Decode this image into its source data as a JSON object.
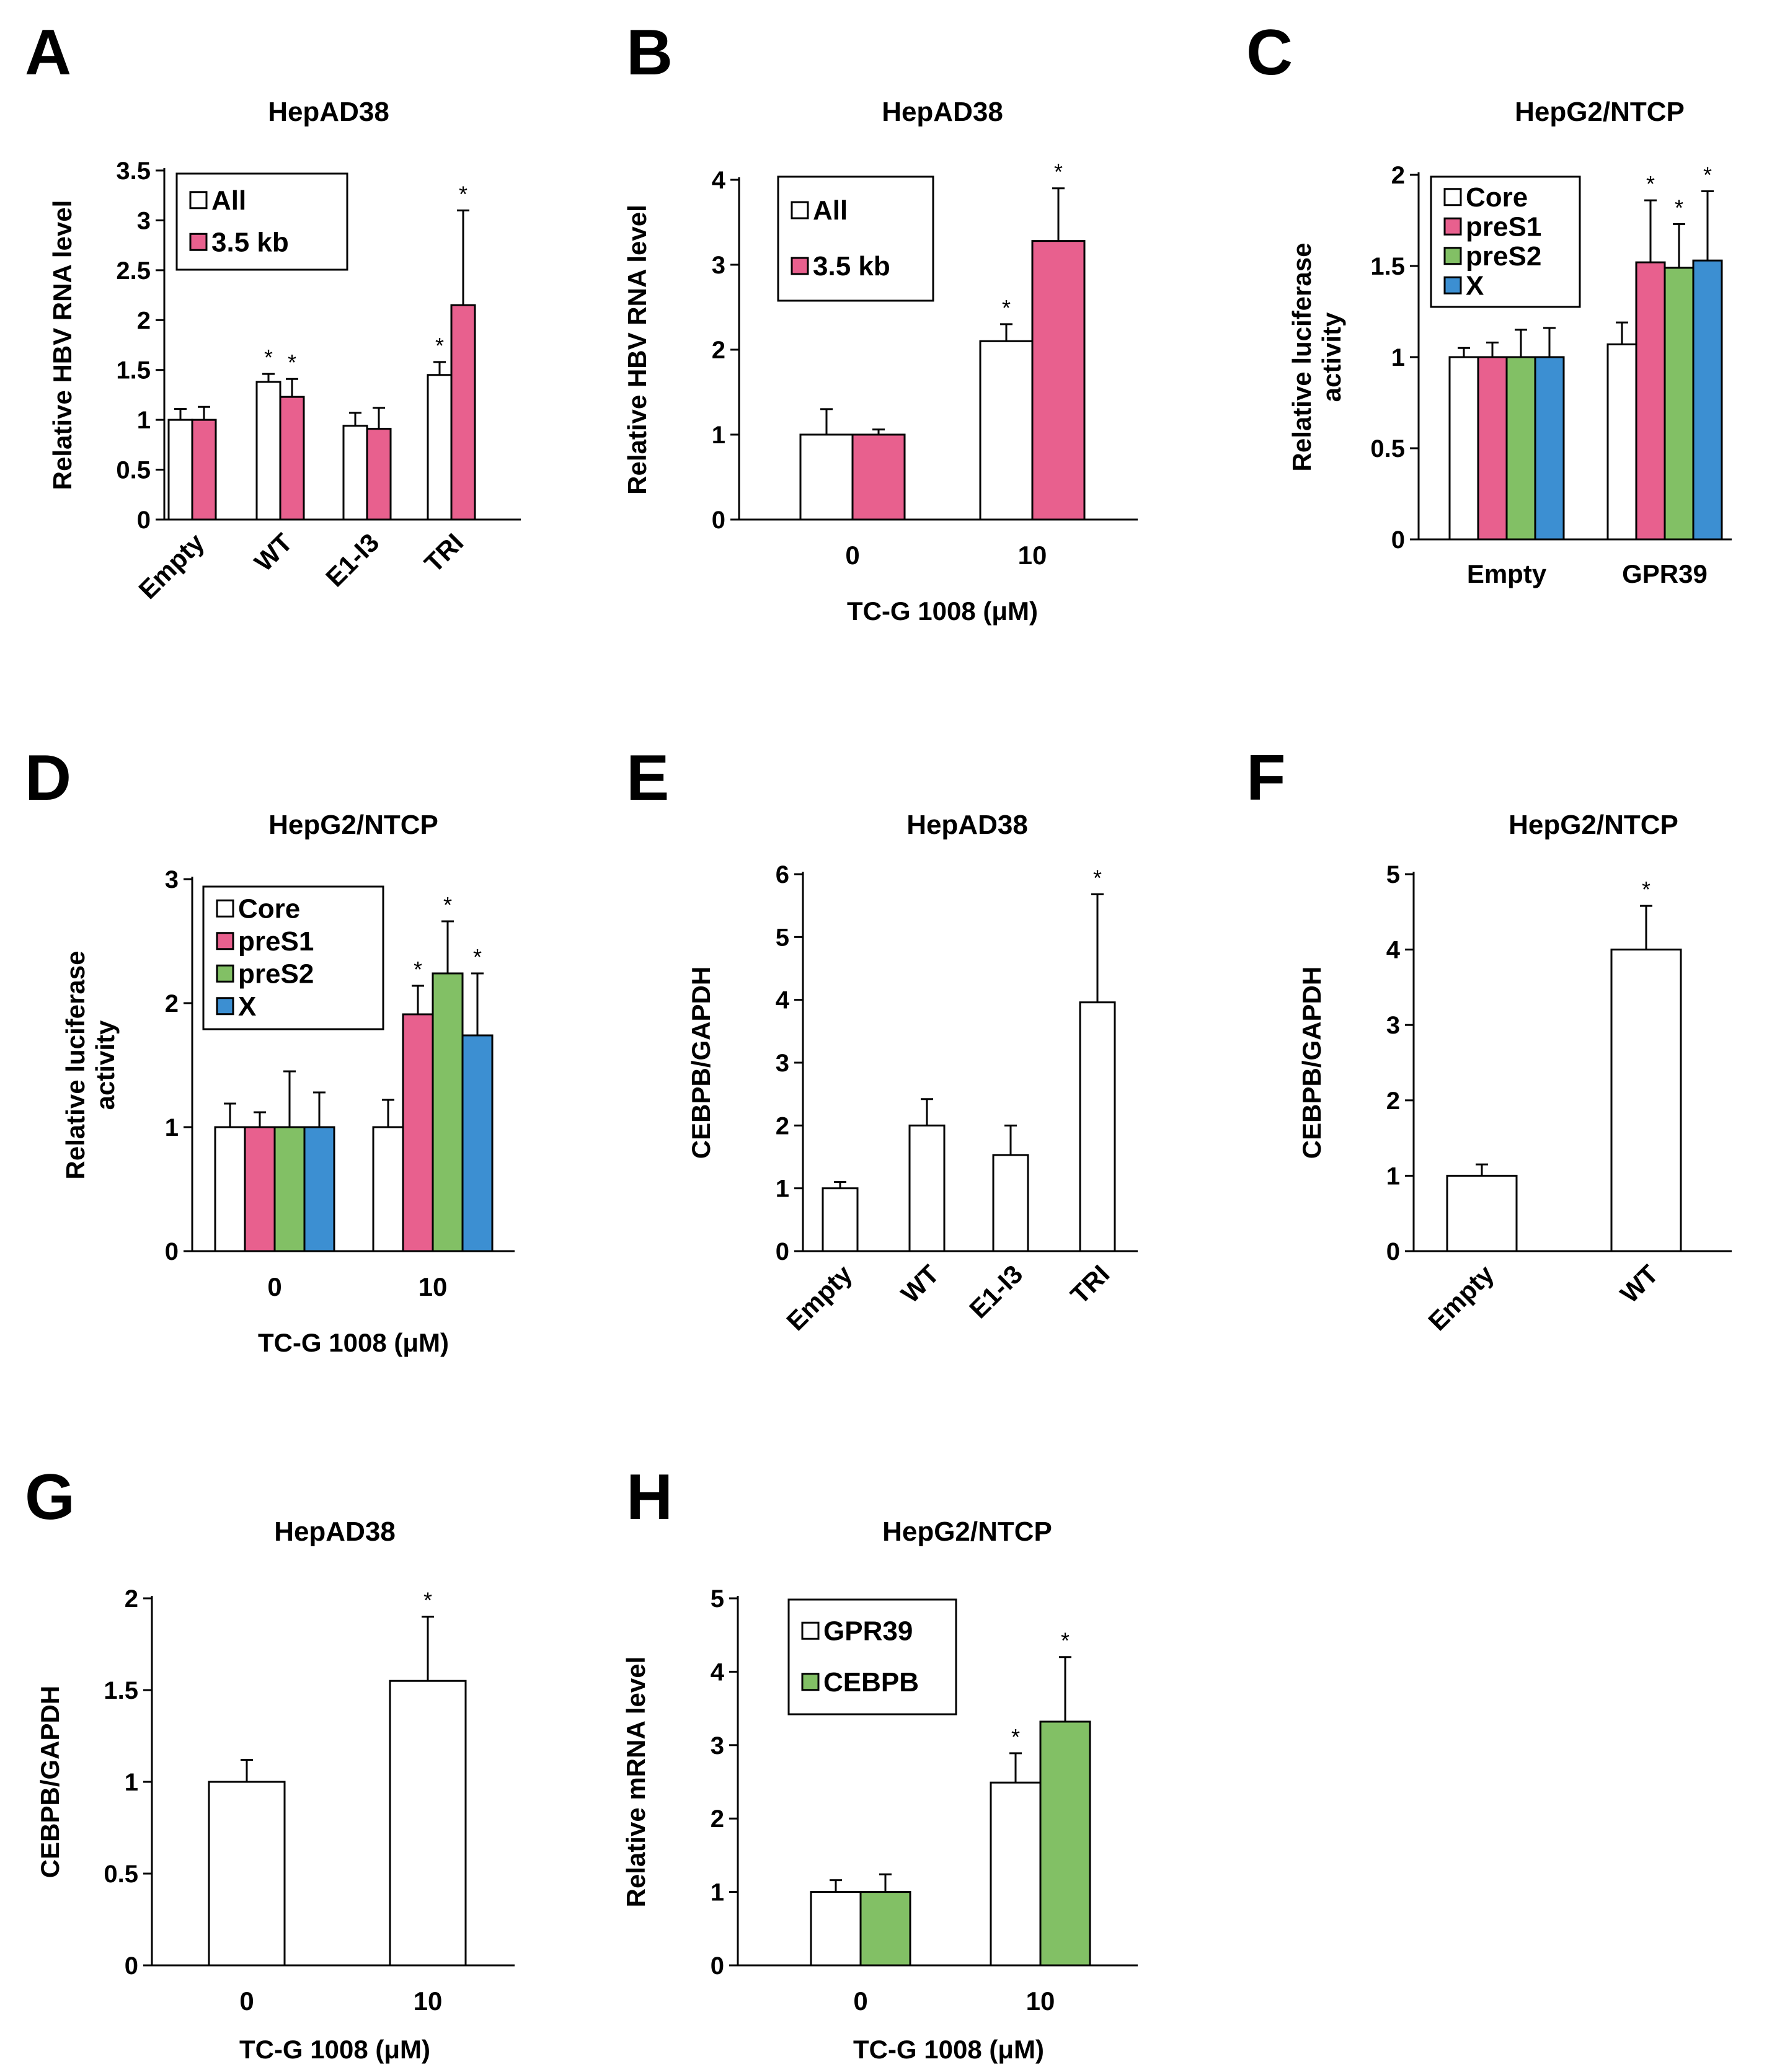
{
  "chart_data": [
    {
      "panel": "A",
      "type": "bar",
      "title": "HepAD38",
      "ylabel": "Relative HBV RNA level",
      "xlabel": "",
      "ylim": [
        0,
        3.5
      ],
      "yticks": [
        0,
        0.5,
        1,
        1.5,
        2,
        2.5,
        3,
        3.5
      ],
      "ytick_labels": [
        "0",
        "0.5",
        "1",
        "1.5",
        "2",
        "2.5",
        "3",
        "3.5"
      ],
      "categories": [
        "Empty",
        "WT",
        "E1-I3",
        "TRI"
      ],
      "rotate_categories": true,
      "series": [
        {
          "name": "All",
          "color": "#ffffff",
          "values": [
            1.0,
            1.38,
            0.94,
            1.45
          ],
          "errors": [
            0.11,
            0.08,
            0.13,
            0.13
          ],
          "sig": [
            false,
            true,
            false,
            true
          ]
        },
        {
          "name": "3.5 kb",
          "color": "#e8608e",
          "values": [
            1.0,
            1.23,
            0.91,
            2.15
          ],
          "errors": [
            0.13,
            0.18,
            0.21,
            0.95
          ],
          "sig": [
            false,
            true,
            false,
            true
          ]
        }
      ],
      "legend": "top-left"
    },
    {
      "panel": "B",
      "type": "bar",
      "title": "HepAD38",
      "ylabel": "Relative HBV RNA level",
      "xlabel": "TC-G 1008 (μM)",
      "ylim": [
        0,
        4
      ],
      "yticks": [
        0,
        1,
        2,
        3,
        4
      ],
      "ytick_labels": [
        "0",
        "1",
        "2",
        "3",
        "4"
      ],
      "categories": [
        "0",
        "10"
      ],
      "rotate_categories": false,
      "series": [
        {
          "name": "All",
          "color": "#ffffff",
          "values": [
            1.0,
            2.1
          ],
          "errors": [
            0.3,
            0.2
          ],
          "sig": [
            false,
            true
          ]
        },
        {
          "name": "3.5 kb",
          "color": "#e8608e",
          "values": [
            1.0,
            3.28
          ],
          "errors": [
            0.06,
            0.62
          ],
          "sig": [
            false,
            true
          ]
        }
      ],
      "legend": "top-left"
    },
    {
      "panel": "C",
      "type": "bar",
      "title": "HepG2/NTCP",
      "ylabel": [
        "Relative luciferase",
        "activity"
      ],
      "xlabel": "",
      "ylim": [
        0,
        2
      ],
      "yticks": [
        0,
        0.5,
        1,
        1.5,
        2
      ],
      "ytick_labels": [
        "0",
        "0.5",
        "1",
        "1.5",
        "2"
      ],
      "categories": [
        "Empty",
        "GPR39"
      ],
      "rotate_categories": false,
      "series": [
        {
          "name": "Core",
          "color": "#ffffff",
          "values": [
            1.0,
            1.07
          ],
          "errors": [
            0.05,
            0.12
          ],
          "sig": [
            false,
            false
          ]
        },
        {
          "name": "preS1",
          "color": "#e8608e",
          "values": [
            1.0,
            1.52
          ],
          "errors": [
            0.08,
            0.34
          ],
          "sig": [
            false,
            true
          ]
        },
        {
          "name": "preS2",
          "color": "#82c065",
          "values": [
            1.0,
            1.49
          ],
          "errors": [
            0.15,
            0.24
          ],
          "sig": [
            false,
            true
          ]
        },
        {
          "name": "X",
          "color": "#3c8fd2",
          "values": [
            1.0,
            1.53
          ],
          "errors": [
            0.16,
            0.38
          ],
          "sig": [
            false,
            true
          ]
        }
      ],
      "legend": "top-left"
    },
    {
      "panel": "D",
      "type": "bar",
      "title": "HepG2/NTCP",
      "ylabel": [
        "Relative luciferase",
        "activity"
      ],
      "xlabel": "TC-G 1008 (μM)",
      "ylim": [
        0,
        3
      ],
      "yticks": [
        0,
        1,
        2,
        3
      ],
      "ytick_labels": [
        "0",
        "1",
        "2",
        "3"
      ],
      "categories": [
        "0",
        "10"
      ],
      "rotate_categories": false,
      "series": [
        {
          "name": "Core",
          "color": "#ffffff",
          "values": [
            1.0,
            1.0
          ],
          "errors": [
            0.19,
            0.22
          ],
          "sig": [
            false,
            false
          ]
        },
        {
          "name": "preS1",
          "color": "#e8608e",
          "values": [
            1.0,
            1.91
          ],
          "errors": [
            0.12,
            0.23
          ],
          "sig": [
            false,
            true
          ]
        },
        {
          "name": "preS2",
          "color": "#82c065",
          "values": [
            1.0,
            2.24
          ],
          "errors": [
            0.45,
            0.42
          ],
          "sig": [
            false,
            true
          ]
        },
        {
          "name": "X",
          "color": "#3c8fd2",
          "values": [
            1.0,
            1.74
          ],
          "errors": [
            0.28,
            0.5
          ],
          "sig": [
            false,
            true
          ]
        }
      ],
      "legend": "top-left"
    },
    {
      "panel": "E",
      "type": "bar",
      "title": "HepAD38",
      "ylabel": "CEBPB/GAPDH",
      "xlabel": "",
      "ylim": [
        0,
        6
      ],
      "yticks": [
        0,
        1,
        2,
        3,
        4,
        5,
        6
      ],
      "ytick_labels": [
        "0",
        "1",
        "2",
        "3",
        "4",
        "5",
        "6"
      ],
      "categories": [
        "Empty",
        "WT",
        "E1-I3",
        "TRI"
      ],
      "rotate_categories": true,
      "series": [
        {
          "color": "#ffffff",
          "values": [
            1.0,
            2.0,
            1.53,
            3.96
          ],
          "errors": [
            0.1,
            0.42,
            0.47,
            1.72
          ],
          "sig": [
            false,
            false,
            false,
            true
          ]
        }
      ],
      "legend": "none"
    },
    {
      "panel": "F",
      "type": "bar",
      "title": "HepG2/NTCP",
      "ylabel": "CEBPB/GAPDH",
      "xlabel": "",
      "ylim": [
        0,
        5
      ],
      "yticks": [
        0,
        1,
        2,
        3,
        4,
        5
      ],
      "ytick_labels": [
        "0",
        "1",
        "2",
        "3",
        "4",
        "5"
      ],
      "categories": [
        "Empty",
        "WT"
      ],
      "rotate_categories": true,
      "series": [
        {
          "color": "#ffffff",
          "values": [
            1.0,
            4.0
          ],
          "errors": [
            0.15,
            0.58
          ],
          "sig": [
            false,
            true
          ]
        }
      ],
      "legend": "none"
    },
    {
      "panel": "G",
      "type": "bar",
      "title": "HepAD38",
      "ylabel": "CEBPB/GAPDH",
      "xlabel": "TC-G 1008 (μM)",
      "ylim": [
        0,
        2
      ],
      "yticks": [
        0,
        0.5,
        1,
        1.5,
        2
      ],
      "ytick_labels": [
        "0",
        "0.5",
        "1",
        "1.5",
        "2"
      ],
      "categories": [
        "0",
        "10"
      ],
      "rotate_categories": false,
      "series": [
        {
          "color": "#ffffff",
          "values": [
            1.0,
            1.55
          ],
          "errors": [
            0.12,
            0.35
          ],
          "sig": [
            false,
            true
          ]
        }
      ],
      "legend": "none"
    },
    {
      "panel": "H",
      "type": "bar",
      "title": "HepG2/NTCP",
      "ylabel": "Relative mRNA level",
      "xlabel": "TC-G 1008 (μM)",
      "ylim": [
        0,
        5
      ],
      "yticks": [
        0,
        1,
        2,
        3,
        4,
        5
      ],
      "ytick_labels": [
        "0",
        "1",
        "2",
        "3",
        "4",
        "5"
      ],
      "categories": [
        "0",
        "10"
      ],
      "rotate_categories": false,
      "series": [
        {
          "name": "GPR39",
          "color": "#ffffff",
          "values": [
            1.0,
            2.49
          ],
          "errors": [
            0.16,
            0.4
          ],
          "sig": [
            false,
            true
          ]
        },
        {
          "name": "CEBPB",
          "color": "#82c065",
          "values": [
            1.0,
            3.32
          ],
          "errors": [
            0.24,
            0.88
          ],
          "sig": [
            false,
            true
          ]
        }
      ],
      "legend": "top-left"
    }
  ]
}
